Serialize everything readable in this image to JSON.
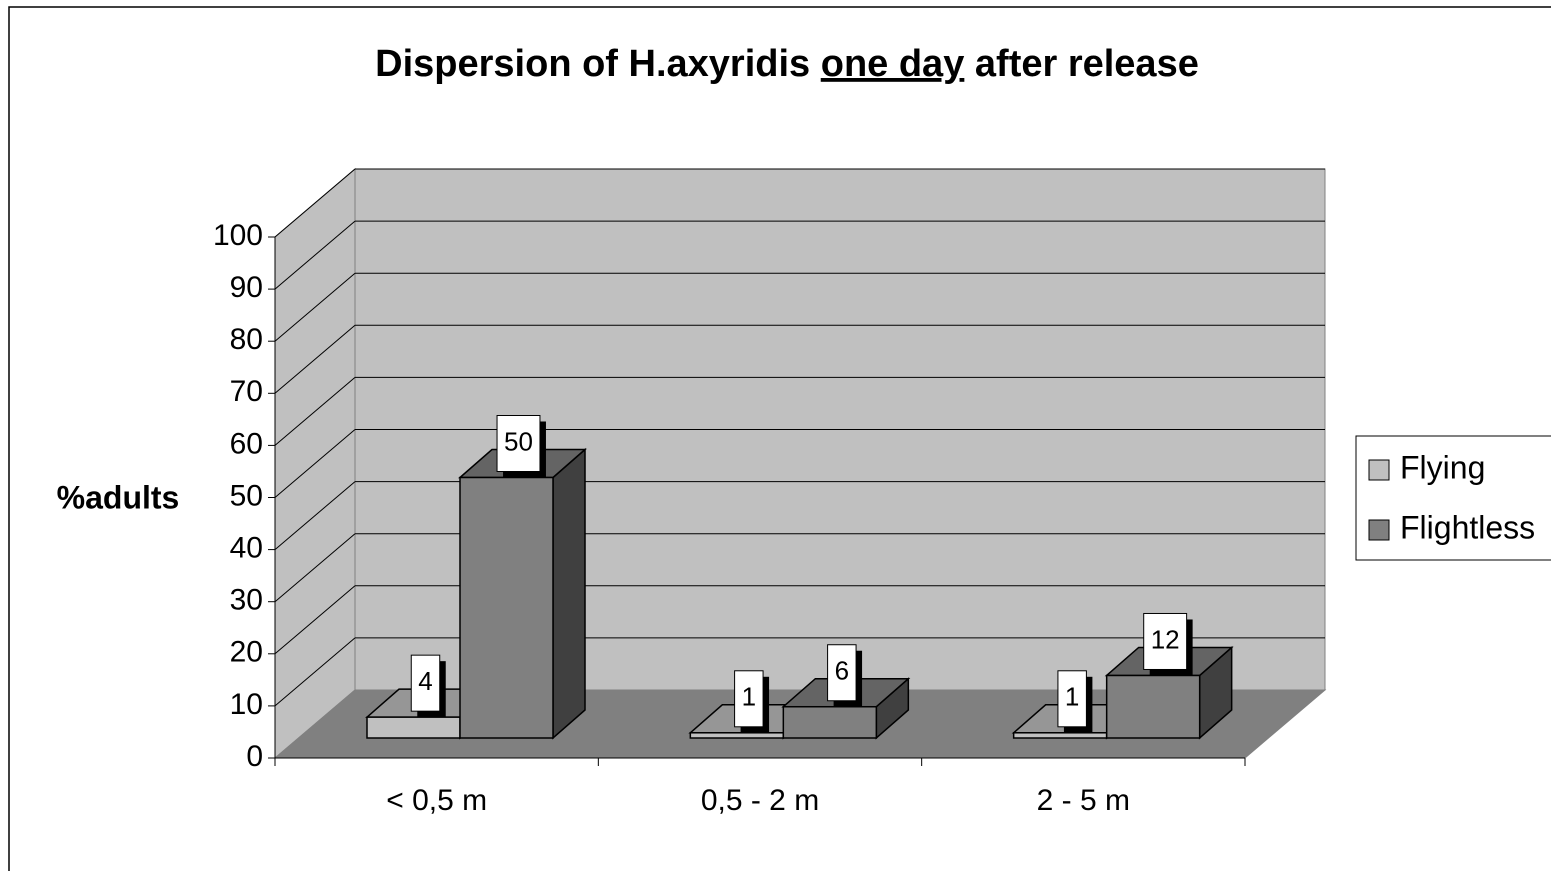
{
  "chart_data": {
    "type": "bar3d",
    "title": [
      "Dispersion of H.axyridis ",
      "one day",
      " after release"
    ],
    "y_label": "%adults",
    "categories": [
      "< 0,5 m",
      "0,5 - 2 m",
      "2 - 5 m"
    ],
    "series": [
      {
        "name": "Flying",
        "color": "#c0c0c0",
        "values": [
          4,
          1,
          1
        ]
      },
      {
        "name": "Flightless",
        "color": "#808080",
        "values": [
          50,
          6,
          12
        ]
      }
    ],
    "ylim": [
      0,
      100
    ],
    "yticks": [
      0,
      10,
      20,
      30,
      40,
      50,
      60,
      70,
      80,
      90,
      100
    ],
    "grid": true,
    "legend": "right"
  }
}
